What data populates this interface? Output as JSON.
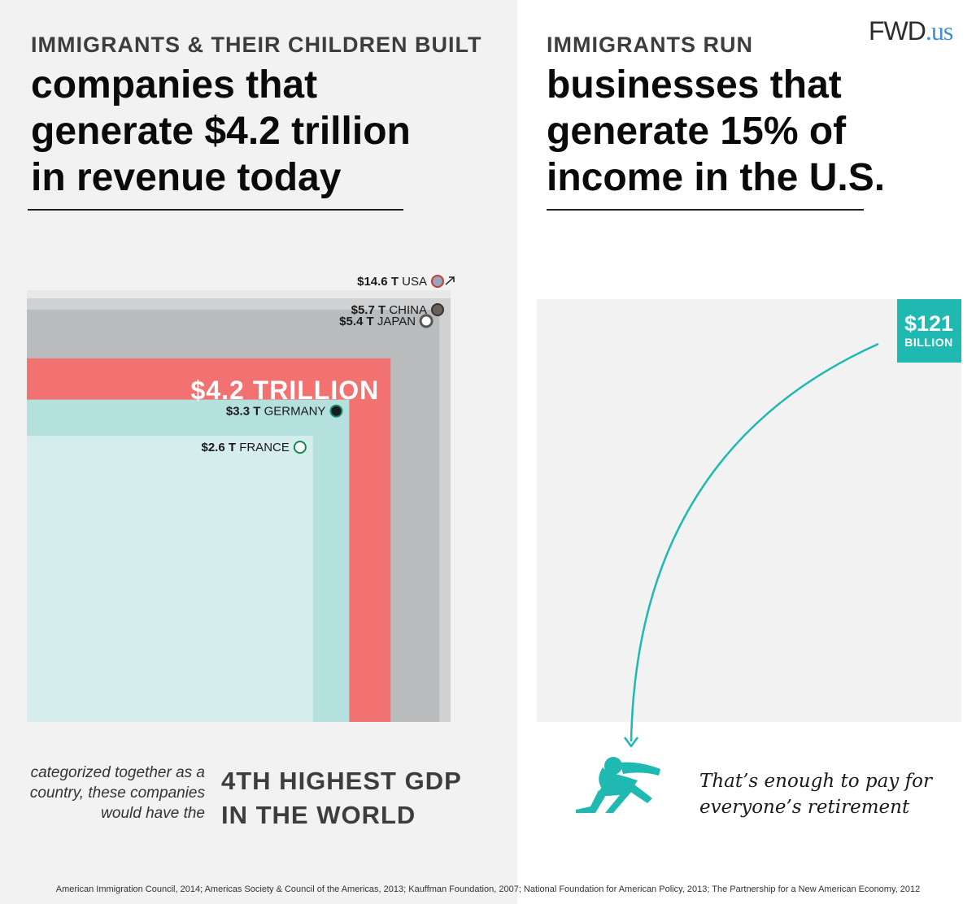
{
  "left": {
    "kicker": "IMMIGRANTS & THEIR CHILDREN BUILT",
    "headline": [
      "companies that",
      "generate $4.2 trillion",
      "in revenue today"
    ],
    "caption_italic": [
      "categorized together as a",
      "country, these companies",
      "would have the"
    ],
    "caption_bold": [
      "4TH HIGHEST GDP",
      "IN THE WORLD"
    ]
  },
  "right": {
    "kicker": "IMMIGRANTS RUN",
    "headline": [
      "businesses that",
      "generate 15% of",
      "income in the U.S."
    ],
    "retirement_text": [
      "That’s enough to pay for",
      "everyone’s retirement"
    ]
  },
  "logo": {
    "brand": "FWD",
    "suffix": ".us"
  },
  "sources": "American Immigration Council, 2014; Americas Society & Council of the Americas, 2013; Kauffman Foundation, 2007; National Foundation for American Policy, 2013; The Partnership for a New American Economy, 2012",
  "chart_data": [
    {
      "type": "bar",
      "categories": [
        "USA",
        "CHINA",
        "JAPAN",
        "$4.2 TRILLION",
        "GERMANY",
        "FRANCE"
      ],
      "values": [
        14.6,
        5.7,
        5.4,
        4.2,
        3.3,
        2.6
      ],
      "unit": "T",
      "value_labels": [
        "$14.6 T",
        "$5.7 T",
        "$5.4 T",
        "$4.2 TRILLION",
        "$3.3 T",
        "$2.6 T"
      ],
      "colors": [
        "#e8e8e8",
        "#d0d1d3",
        "#babbbd",
        "#f27171",
        "#b4e0de",
        "#d5edec"
      ],
      "icons": [
        "us-flag-icon",
        "china-flag-icon",
        "japan-flag-icon",
        "",
        "germany-flag-icon",
        "nigeria-flag-icon"
      ],
      "highlight_index": 3
    },
    {
      "type": "area",
      "value_label": "$121",
      "unit_label": "BILLION",
      "colors": {
        "box": "#f2f2f2",
        "badge": "#1fb9b2",
        "arrow": "#1fb9b2"
      },
      "icon": "relaxing-person-icon"
    }
  ]
}
